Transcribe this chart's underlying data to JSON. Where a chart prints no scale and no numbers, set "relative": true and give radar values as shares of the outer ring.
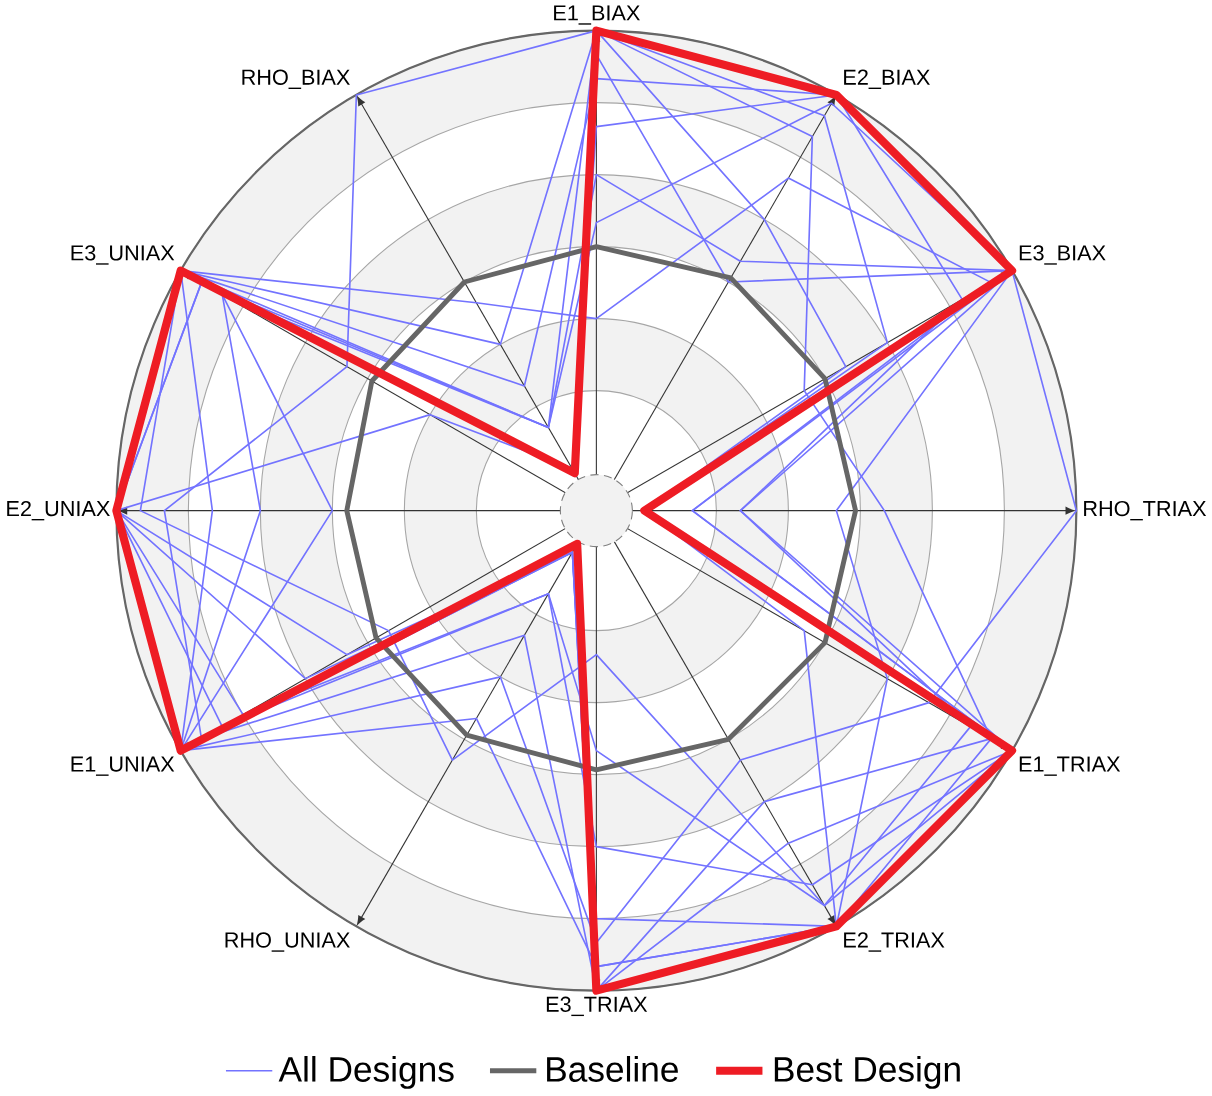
{
  "chart_data": {
    "type": "radar",
    "relative": true,
    "grid": true,
    "legend": "bottom",
    "categories": [
      "E1_BIAX",
      "E2_BIAX",
      "E3_BIAX",
      "RHO_TRIAX",
      "E1_TRIAX",
      "E2_TRIAX",
      "E3_TRIAX",
      "RHO_UNIAX",
      "E1_UNIAX",
      "E2_UNIAX",
      "E3_UNIAX",
      "RHO_BIAX"
    ],
    "series": [
      {
        "name": "All Designs",
        "color": "#7373ff",
        "values": [
          1,
          1,
          1,
          0.1,
          0.95,
          1,
          0.95,
          0.1,
          1,
          1,
          0.95,
          0.1
        ]
      },
      {
        "color": "#7373ff",
        "values": [
          0.9,
          1,
          0.88,
          0.3,
          0.9,
          0.95,
          0.5,
          0.2,
          0.85,
          1,
          1,
          0.3
        ]
      },
      {
        "color": "#7373ff",
        "values": [
          1,
          0.7,
          0.6,
          0.1,
          1,
          0.8,
          1,
          0.3,
          0.95,
          0.9,
          0.6,
          1
        ]
      },
      {
        "color": "#7373ff",
        "values": [
          0.6,
          0.98,
          1,
          0.5,
          0.7,
          1,
          0.85,
          0.1,
          0.7,
          1,
          0.95,
          0.2
        ]
      },
      {
        "color": "#7373ff",
        "values": [
          0.95,
          0.55,
          1,
          1,
          0.8,
          0.6,
          0.9,
          0.4,
          1,
          0.7,
          0.9,
          0.1
        ]
      },
      {
        "color": "#7373ff",
        "values": [
          0.4,
          0.8,
          0.95,
          0.2,
          1,
          0.95,
          0.3,
          0.6,
          0.5,
          0.95,
          1,
          0.5
        ]
      },
      {
        "color": "#7373ff",
        "values": [
          1,
          0.95,
          0.7,
          0.1,
          0.5,
          1,
          1,
          0.1,
          1,
          0.55,
          0.9,
          0.2
        ]
      },
      {
        "color": "#7373ff",
        "values": [
          0.8,
          1,
          1,
          0.3,
          1,
          0.9,
          0.7,
          0.2,
          0.9,
          1,
          0.4,
          0.1
        ]
      },
      {
        "color": "#7373ff",
        "values": [
          1,
          0.9,
          0.5,
          0.6,
          0.95,
          0.7,
          1,
          0.1,
          0.6,
          1,
          1,
          0.4
        ]
      },
      {
        "color": "#7373ff",
        "values": [
          0.7,
          0.6,
          1,
          0.2,
          1,
          1,
          0.95,
          0.5,
          1,
          0.8,
          1,
          0.2
        ]
      },
      {
        "name": "Baseline",
        "color": "#666666",
        "values": [
          0.55,
          0.56,
          0.55,
          0.54,
          0.55,
          0.55,
          0.54,
          0.54,
          0.53,
          0.52,
          0.54,
          0.55
        ]
      },
      {
        "name": "Best Design",
        "color": "#ee1c24",
        "values": [
          1,
          1,
          1,
          0.1,
          1,
          1,
          1,
          0.08,
          1,
          1,
          1,
          0.09
        ]
      }
    ]
  }
}
